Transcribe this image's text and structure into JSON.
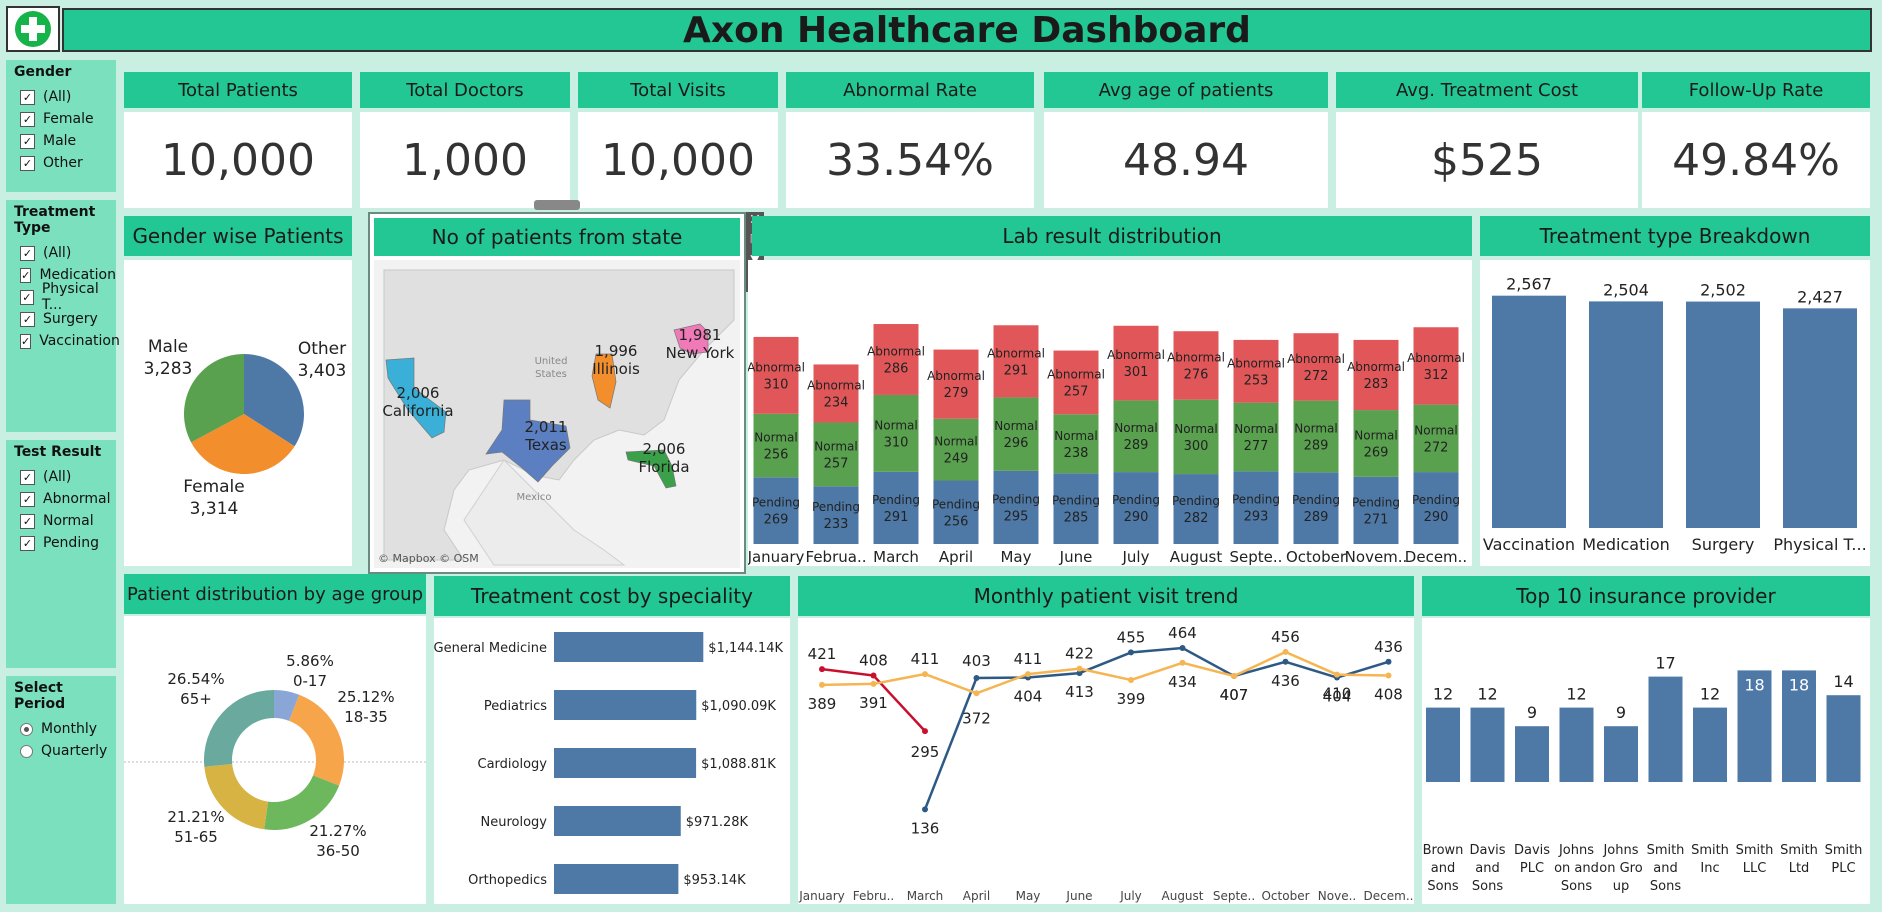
{
  "title": "Axon Healthcare Dashboard",
  "filters": {
    "gender": {
      "title": "Gender",
      "items": [
        "(All)",
        "Female",
        "Male",
        "Other"
      ]
    },
    "treatment": {
      "title": "Treatment Type",
      "items": [
        "(All)",
        "Medication",
        "Physical T...",
        "Surgery",
        "Vaccination"
      ]
    },
    "test": {
      "title": "Test Result",
      "items": [
        "(All)",
        "Abnormal",
        "Normal",
        "Pending"
      ]
    },
    "period": {
      "title": "Select Period",
      "items": [
        "Monthly",
        "Quarterly"
      ],
      "selected": "Monthly"
    }
  },
  "kpis": [
    {
      "label": "Total Patients",
      "value": "10,000"
    },
    {
      "label": "Total Doctors",
      "value": "1,000"
    },
    {
      "label": "Total Visits",
      "value": "10,000"
    },
    {
      "label": "Abnormal Rate",
      "value": "33.54%"
    },
    {
      "label": "Avg age of patients",
      "value": "48.94"
    },
    {
      "label": "Avg. Treatment Cost",
      "value": "$525"
    },
    {
      "label": "Follow-Up Rate",
      "value": "49.84%"
    }
  ],
  "colors": {
    "header": "#22c793",
    "blue": "#4e79a7",
    "orange": "#f28e2b",
    "green": "#59a14f",
    "red": "#e15759",
    "yellow": "#f6b553",
    "crimson": "#c8102e",
    "teal": "#6aaa9e"
  },
  "map": {
    "attribution": "© Mapbox © OSM",
    "labels": [
      "United",
      "States",
      "Mexico"
    ]
  },
  "chart_data": [
    {
      "type": "pie",
      "title": "Gender wise Patients",
      "slices": [
        {
          "name": "Other",
          "value": 3403,
          "color": "#4e79a7"
        },
        {
          "name": "Female",
          "value": 3314,
          "color": "#f28e2b"
        },
        {
          "name": "Male",
          "value": 3283,
          "color": "#59a14f"
        }
      ]
    },
    {
      "type": "map",
      "title": "No of patients from state",
      "states": [
        {
          "name": "California",
          "value": 2006
        },
        {
          "name": "Texas",
          "value": 2011
        },
        {
          "name": "Illinois",
          "value": 1996
        },
        {
          "name": "New York",
          "value": 1981
        },
        {
          "name": "Florida",
          "value": 2006
        }
      ]
    },
    {
      "type": "bar",
      "title": "Lab result distribution",
      "stacked": true,
      "categories": [
        "January",
        "Februa..",
        "March",
        "April",
        "May",
        "June",
        "July",
        "August",
        "Septe..",
        "October",
        "Novem..",
        "Decem.."
      ],
      "series": [
        {
          "name": "Pending",
          "values": [
            269,
            233,
            291,
            256,
            295,
            285,
            290,
            282,
            293,
            289,
            271,
            290
          ]
        },
        {
          "name": "Normal",
          "values": [
            256,
            257,
            310,
            249,
            296,
            238,
            289,
            300,
            277,
            289,
            269,
            272
          ]
        },
        {
          "name": "Abnormal",
          "values": [
            310,
            234,
            286,
            279,
            291,
            257,
            301,
            276,
            253,
            272,
            283,
            312
          ]
        }
      ]
    },
    {
      "type": "bar",
      "title": "Treatment type Breakdown",
      "categories": [
        "Vaccination",
        "Medication",
        "Surgery",
        "Physical T..."
      ],
      "values": [
        2567,
        2504,
        2502,
        2427
      ]
    },
    {
      "type": "pie",
      "title": "Patient distribution by age group",
      "donut": true,
      "slices": [
        {
          "name": "0-17",
          "value": 5.86,
          "label": "5.86%"
        },
        {
          "name": "18-35",
          "value": 25.12,
          "label": "25.12%"
        },
        {
          "name": "36-50",
          "value": 21.27,
          "label": "21.27%"
        },
        {
          "name": "51-65",
          "value": 21.21,
          "label": "21.21%"
        },
        {
          "name": "65+",
          "value": 26.54,
          "label": "26.54%"
        }
      ]
    },
    {
      "type": "bar",
      "title": "Treatment cost by speciality",
      "orientation": "horizontal",
      "categories": [
        "General Medicine",
        "Pediatrics",
        "Cardiology",
        "Neurology",
        "Orthopedics"
      ],
      "values": [
        1144.14,
        1090.09,
        1088.81,
        971.28,
        953.14
      ],
      "labels": [
        "$1,144.14K",
        "$1,090.09K",
        "$1,088.81K",
        "$971.28K",
        "$953.14K"
      ]
    },
    {
      "type": "line",
      "title": "Monthly patient visit trend",
      "categories": [
        "January",
        "Febru..",
        "March",
        "April",
        "May",
        "June",
        "July",
        "August",
        "Septe..",
        "October",
        "Nove..",
        "Decem.."
      ],
      "series": [
        {
          "name": "crimson",
          "values": [
            421,
            408,
            295,
            null,
            null,
            null,
            null,
            null,
            null,
            null,
            null,
            null
          ]
        },
        {
          "name": "navy",
          "values": [
            null,
            null,
            136,
            403,
            404,
            413,
            455,
            464,
            407,
            436,
            404,
            436
          ]
        },
        {
          "name": "orange",
          "values": [
            389,
            391,
            411,
            372,
            411,
            422,
            399,
            434,
            407,
            456,
            410,
            408
          ]
        }
      ]
    },
    {
      "type": "bar",
      "title": "Top 10 insurance provider",
      "categories": [
        "Brown and Sons",
        "Davis and Sons",
        "Davis PLC",
        "Johns on and Sons",
        "Johns on Gro up",
        "Smith and Sons",
        "Smith Inc",
        "Smith LLC",
        "Smith Ltd",
        "Smith PLC"
      ],
      "values": [
        12,
        12,
        9,
        12,
        9,
        17,
        12,
        18,
        18,
        14
      ]
    }
  ]
}
